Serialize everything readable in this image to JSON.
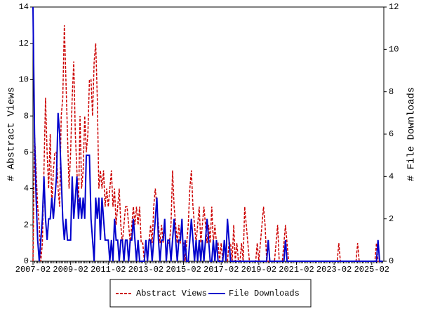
{
  "chart_data": {
    "type": "line",
    "y_label": "# Abstract Views",
    "y2_label": "# File Downloads",
    "categories": [
      "2007-02",
      null,
      null,
      null,
      null,
      null,
      null,
      null,
      null,
      null,
      null,
      null,
      null,
      null,
      null,
      null,
      null,
      null,
      null,
      null,
      null,
      null,
      null,
      null,
      "2009-02",
      null,
      null,
      null,
      null,
      null,
      null,
      null,
      null,
      null,
      null,
      null,
      null,
      null,
      null,
      null,
      null,
      null,
      null,
      null,
      null,
      null,
      null,
      null,
      "2011-02",
      null,
      null,
      null,
      null,
      null,
      null,
      null,
      null,
      null,
      null,
      null,
      null,
      null,
      null,
      null,
      null,
      null,
      null,
      null,
      null,
      null,
      null,
      null,
      "2013-02",
      null,
      null,
      null,
      null,
      null,
      null,
      null,
      null,
      null,
      null,
      null,
      null,
      null,
      null,
      null,
      null,
      null,
      null,
      null,
      null,
      null,
      null,
      null,
      "2015-02",
      null,
      null,
      null,
      null,
      null,
      null,
      null,
      null,
      null,
      null,
      null,
      null,
      null,
      null,
      null,
      null,
      null,
      null,
      null,
      null,
      null,
      null,
      null,
      "2017-02",
      null,
      null,
      null,
      null,
      null,
      null,
      null,
      null,
      null,
      null,
      null,
      null,
      null,
      null,
      null,
      null,
      null,
      null,
      null,
      null,
      null,
      null,
      null,
      "2019-02",
      null,
      null,
      null,
      null,
      null,
      null,
      null,
      null,
      null,
      null,
      null,
      null,
      null,
      null,
      null,
      null,
      null,
      null,
      null,
      null,
      null,
      null,
      null,
      "2021-02",
      null,
      null,
      null,
      null,
      null,
      null,
      null,
      null,
      null,
      null,
      null,
      null,
      null,
      null,
      null,
      null,
      null,
      null,
      null,
      null,
      null,
      null,
      null,
      "2023-02",
      null,
      null,
      null,
      null,
      null,
      null,
      null,
      null,
      null,
      null,
      null,
      null,
      null,
      null,
      null,
      null,
      null,
      null,
      null,
      null,
      null,
      null,
      null,
      "2025-02",
      null,
      null,
      null,
      null,
      null,
      null,
      null
    ],
    "series": [
      {
        "name": "Abstract Views",
        "color": "#cc0000",
        "dash": true,
        "values": [
          0,
          7,
          5,
          3,
          2,
          0,
          1,
          5,
          9,
          6,
          4,
          7,
          3,
          5,
          6,
          6,
          4,
          3,
          8,
          9,
          13,
          10,
          7,
          4,
          6,
          9,
          11,
          7,
          5,
          3,
          8,
          4,
          5,
          8,
          6,
          7,
          10,
          10,
          8,
          11,
          12,
          9,
          4,
          5,
          4,
          5,
          3,
          4,
          3,
          4,
          5,
          3,
          4,
          2,
          3,
          4,
          2,
          1,
          2,
          3,
          3,
          2,
          1,
          2,
          3,
          2,
          3,
          2,
          3,
          1,
          1,
          0,
          1,
          0,
          1,
          2,
          1,
          3,
          4,
          3,
          2,
          1,
          2,
          1,
          2,
          0,
          1,
          1,
          2,
          5,
          3,
          2,
          1,
          2,
          1,
          1,
          1,
          0,
          1,
          2,
          4,
          5,
          3,
          2,
          1,
          2,
          3,
          1,
          2,
          3,
          2,
          1,
          2,
          1,
          3,
          1,
          2,
          1,
          1,
          0,
          1,
          0,
          1,
          0,
          0,
          1,
          1,
          0,
          2,
          0,
          1,
          0,
          0,
          1,
          0,
          3,
          2,
          1,
          0,
          0,
          0,
          0,
          0,
          1,
          0,
          1,
          2,
          3,
          2,
          0,
          0,
          0,
          0,
          0,
          0,
          1,
          2,
          0,
          0,
          0,
          1,
          2,
          1,
          0,
          0,
          0,
          0,
          0,
          0,
          0,
          0,
          0,
          0,
          0,
          0,
          0,
          0,
          0,
          0,
          0,
          0,
          0,
          0,
          0,
          0,
          0,
          0,
          0,
          0,
          0,
          0,
          0,
          0,
          0,
          0,
          1,
          0,
          0,
          0,
          0,
          0,
          0,
          0,
          0,
          0,
          0,
          0,
          1,
          0,
          0,
          0,
          0,
          0,
          0,
          0,
          0,
          0,
          0,
          0,
          1,
          0,
          0,
          0,
          0
        ]
      },
      {
        "name": "File Downloads",
        "color": "#0000cc",
        "axis": "y2",
        "values": [
          12,
          6,
          3,
          1,
          0,
          1,
          2,
          4,
          2,
          1,
          2,
          2,
          3,
          2,
          3,
          4,
          7,
          6,
          4,
          2,
          1,
          2,
          1,
          1,
          1,
          4,
          2,
          3,
          4,
          2,
          3,
          2,
          3,
          2,
          5,
          5,
          5,
          2,
          1,
          0,
          3,
          2,
          3,
          1,
          3,
          2,
          1,
          1,
          1,
          0,
          1,
          0,
          2,
          1,
          1,
          0,
          1,
          1,
          0,
          1,
          1,
          0,
          1,
          1,
          2,
          1,
          0,
          1,
          0,
          0,
          0,
          0,
          1,
          0,
          1,
          1,
          0,
          1,
          2,
          3,
          1,
          0,
          1,
          1,
          2,
          0,
          1,
          1,
          0,
          1,
          2,
          1,
          0,
          1,
          1,
          2,
          0,
          1,
          0,
          0,
          1,
          2,
          1,
          0,
          1,
          0,
          1,
          0,
          1,
          0,
          1,
          2,
          1,
          0,
          0,
          1,
          0,
          1,
          0,
          0,
          0,
          0,
          1,
          0,
          2,
          1,
          0,
          0,
          0,
          0,
          0,
          0,
          0,
          0,
          0,
          0,
          0,
          0,
          0,
          0,
          0,
          0,
          0,
          0,
          0,
          0,
          0,
          0,
          0,
          0,
          1,
          0,
          0,
          0,
          0,
          0,
          0,
          0,
          0,
          0,
          0,
          1,
          0,
          0,
          0,
          0,
          0,
          0,
          0,
          0,
          0,
          0,
          0,
          0,
          0,
          0,
          0,
          0,
          0,
          0,
          0,
          0,
          0,
          0,
          0,
          0,
          0,
          0,
          0,
          0,
          0,
          0,
          0,
          0,
          0,
          0,
          0,
          0,
          0,
          0,
          0,
          0,
          0,
          0,
          0,
          0,
          0,
          0,
          0,
          0,
          0,
          0,
          0,
          0,
          0,
          0,
          0,
          0,
          0,
          0,
          1,
          0,
          0,
          0
        ]
      }
    ],
    "ylim": [
      0,
      14
    ],
    "yticks": [
      0,
      2,
      4,
      6,
      8,
      10,
      12,
      14
    ],
    "y2lim": [
      0,
      12
    ],
    "y2ticks": [
      0,
      2,
      4,
      6,
      8,
      10,
      12
    ],
    "grid": false,
    "legend": "bottom"
  }
}
